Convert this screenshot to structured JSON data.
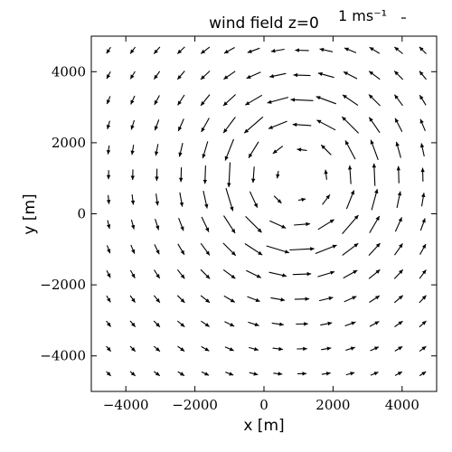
{
  "chart_data": {
    "type": "quiver",
    "title": "wind field z=0",
    "xlabel": "x [m]",
    "ylabel": "y [m]",
    "xlim": [
      -5000,
      5000
    ],
    "ylim": [
      -5000,
      5000
    ],
    "xticks": [
      -4000,
      -2000,
      0,
      2000,
      4000
    ],
    "yticks": [
      -4000,
      -2000,
      0,
      2000,
      4000
    ],
    "xtick_labels": [
      "−4000",
      "−2000",
      "0",
      "2000",
      "4000"
    ],
    "ytick_labels": [
      "−4000",
      "−2000",
      "0",
      "2000",
      "4000"
    ],
    "grid": false,
    "key": {
      "text": "1 ms⁻¹",
      "value": 1,
      "units": "m/s",
      "placement": "top-right"
    },
    "vortex": {
      "center": [
        1000,
        1000
      ],
      "rotation": "counterclockwise",
      "core_radius": 2000,
      "max_speed": 2.2
    },
    "grid_x": [
      -4500,
      -3800,
      -3100,
      -2400,
      -1700,
      -1000,
      -300,
      400,
      1100,
      1800,
      2500,
      3200,
      3900,
      4600
    ],
    "grid_y": [
      -4500,
      -3800,
      -3100,
      -2400,
      -1700,
      -1000,
      -300,
      400,
      1100,
      1800,
      2500,
      3200,
      3900,
      4600
    ],
    "arrow_color": "#000000"
  }
}
